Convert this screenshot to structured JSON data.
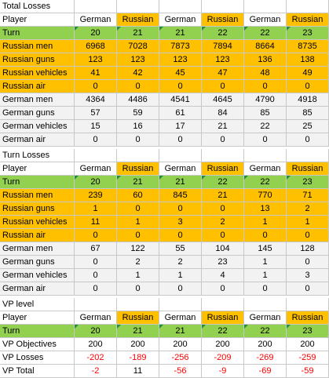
{
  "sections": [
    {
      "title": "Total Losses",
      "player_label": "Player",
      "players": [
        "German",
        "Russian",
        "German",
        "Russian",
        "German",
        "Russian"
      ],
      "turn_label": "Turn",
      "turns": [
        "20",
        "21",
        "21",
        "22",
        "22",
        "23"
      ],
      "rows": [
        {
          "label": "Russian men",
          "values": [
            "6968",
            "7028",
            "7873",
            "7894",
            "8664",
            "8735"
          ],
          "style": "orange"
        },
        {
          "label": "Russian guns",
          "values": [
            "123",
            "123",
            "123",
            "123",
            "136",
            "138"
          ],
          "style": "orange"
        },
        {
          "label": "Russian vehicles",
          "values": [
            "41",
            "42",
            "45",
            "47",
            "48",
            "49"
          ],
          "style": "orange"
        },
        {
          "label": "Russian air",
          "values": [
            "0",
            "0",
            "0",
            "0",
            "0",
            "0"
          ],
          "style": "orange"
        },
        {
          "label": "German men",
          "values": [
            "4364",
            "4486",
            "4541",
            "4645",
            "4790",
            "4918"
          ],
          "style": "grey"
        },
        {
          "label": "German guns",
          "values": [
            "57",
            "59",
            "61",
            "84",
            "85",
            "85"
          ],
          "style": "grey"
        },
        {
          "label": "German vehicles",
          "values": [
            "15",
            "16",
            "17",
            "21",
            "22",
            "25"
          ],
          "style": "grey"
        },
        {
          "label": "German air",
          "values": [
            "0",
            "0",
            "0",
            "0",
            "0",
            "0"
          ],
          "style": "grey"
        }
      ]
    },
    {
      "title": "Turn Losses",
      "player_label": "Player",
      "players": [
        "German",
        "Russian",
        "German",
        "Russian",
        "German",
        "Russian"
      ],
      "turn_label": "Turn",
      "turns": [
        "20",
        "21",
        "21",
        "22",
        "22",
        "23"
      ],
      "rows": [
        {
          "label": "Russian men",
          "values": [
            "239",
            "60",
            "845",
            "21",
            "770",
            "71"
          ],
          "style": "orange"
        },
        {
          "label": "Russian guns",
          "values": [
            "1",
            "0",
            "0",
            "0",
            "13",
            "2"
          ],
          "style": "orange"
        },
        {
          "label": "Russian vehicles",
          "values": [
            "11",
            "1",
            "3",
            "2",
            "1",
            "1"
          ],
          "style": "orange"
        },
        {
          "label": "Russian air",
          "values": [
            "0",
            "0",
            "0",
            "0",
            "0",
            "0"
          ],
          "style": "orange"
        },
        {
          "label": "German men",
          "values": [
            "67",
            "122",
            "55",
            "104",
            "145",
            "128"
          ],
          "style": "grey"
        },
        {
          "label": "German guns",
          "values": [
            "0",
            "2",
            "2",
            "23",
            "1",
            "0"
          ],
          "style": "grey"
        },
        {
          "label": "German vehicles",
          "values": [
            "0",
            "1",
            "1",
            "4",
            "1",
            "3"
          ],
          "style": "grey"
        },
        {
          "label": "German air",
          "values": [
            "0",
            "0",
            "0",
            "0",
            "0",
            "0"
          ],
          "style": "grey"
        }
      ]
    },
    {
      "title": "VP level",
      "player_label": "Player",
      "players": [
        "German",
        "Russian",
        "German",
        "Russian",
        "German",
        "Russian"
      ],
      "turn_label": "Turn",
      "turns": [
        "20",
        "21",
        "21",
        "22",
        "22",
        "23"
      ],
      "rows": [
        {
          "label": "VP Objectives",
          "values": [
            "200",
            "200",
            "200",
            "200",
            "200",
            "200"
          ],
          "style": "white"
        },
        {
          "label": "VP Losses",
          "values": [
            "-202",
            "-189",
            "-256",
            "-209",
            "-269",
            "-259"
          ],
          "style": "white",
          "red": true
        },
        {
          "label": "VP Total",
          "values": [
            "-2",
            "11",
            "-56",
            "-9",
            "-69",
            "-59"
          ],
          "style": "white",
          "red_negative": true
        }
      ]
    }
  ],
  "colors": {
    "turn_row": "#92d050",
    "russian_header": "#ffc000",
    "russian_rows": "#ffc000",
    "german_rows": "#f2f2f2",
    "negative_text": "#ff0000"
  }
}
